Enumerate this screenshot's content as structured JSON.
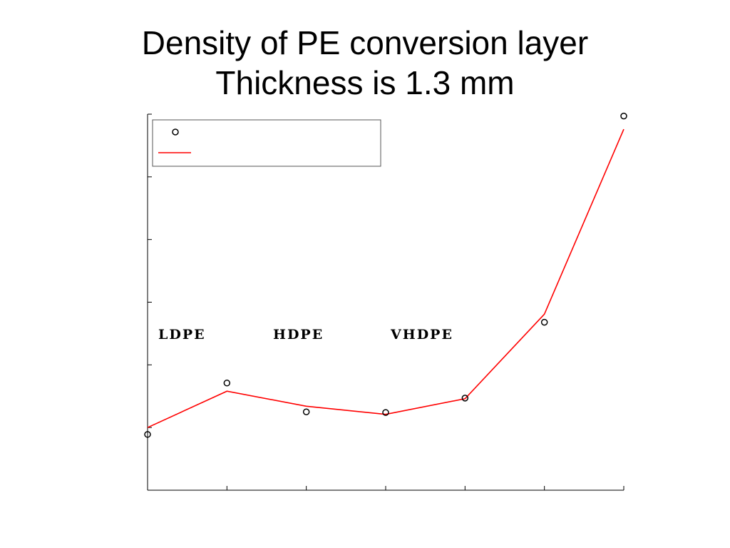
{
  "title": {
    "line1": "Density of PE conversion layer",
    "line2": "Thickness is 1.3 mm"
  },
  "colors": {
    "fit_line": "#ff0000",
    "markers": "#000000",
    "axes": "#000000"
  },
  "chart_data": {
    "type": "line",
    "title": "Density of PE conversion layer Thickness is 1.3 mm",
    "xlabel": "",
    "ylabel": "",
    "x_tick_count": 7,
    "y_tick_count": 7,
    "x": [
      0,
      1,
      2,
      3,
      4,
      5,
      6
    ],
    "xlim": [
      0,
      6
    ],
    "ylim": [
      0,
      6
    ],
    "series": [
      {
        "kind": "markers",
        "marker": "circle",
        "values": [
          0.89,
          1.71,
          1.25,
          1.24,
          1.47,
          2.68,
          5.97
        ]
      },
      {
        "kind": "line",
        "color": "#ff0000",
        "values": [
          1.0,
          1.58,
          1.34,
          1.21,
          1.46,
          2.81,
          5.76
        ]
      }
    ],
    "legend": {
      "placement": "top-left",
      "entries": [
        "",
        ""
      ]
    },
    "annotations": [
      "LDPE",
      "HDPE",
      "VHDPE"
    ],
    "grid": false
  }
}
